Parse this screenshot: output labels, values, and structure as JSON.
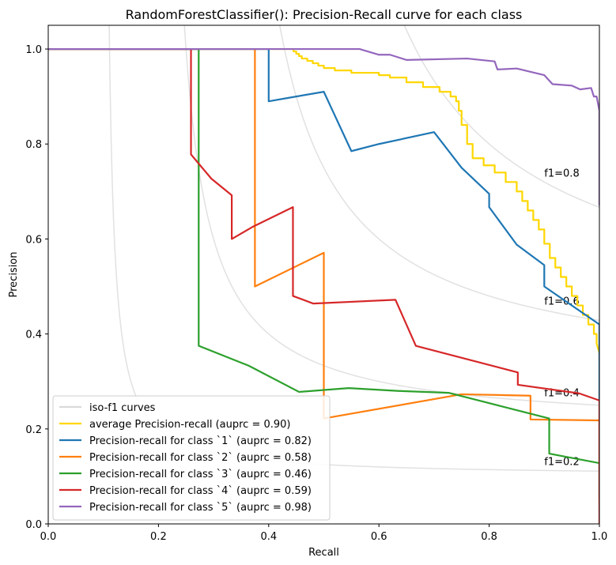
{
  "chart_data": {
    "type": "line",
    "title": "RandomForestClassifier(): Precision-Recall curve for each class",
    "xlabel": "Recall",
    "ylabel": "Precision",
    "xlim": [
      0.0,
      1.0
    ],
    "ylim": [
      0.0,
      1.05
    ],
    "xticks": [
      0.0,
      0.2,
      0.4,
      0.6,
      0.8,
      1.0
    ],
    "yticks": [
      0.0,
      0.2,
      0.4,
      0.6,
      0.8,
      1.0
    ],
    "xtick_labels": [
      "0.0",
      "0.2",
      "0.4",
      "0.6",
      "0.8",
      "1.0"
    ],
    "ytick_labels": [
      "0.0",
      "0.2",
      "0.4",
      "0.6",
      "0.8",
      "1.0"
    ],
    "legend_position": "lower-left",
    "iso_f1": {
      "label": "iso-f1 curves",
      "color": "#d9d9d9",
      "values": [
        0.2,
        0.4,
        0.6,
        0.8
      ],
      "labels": [
        "f1=0.2",
        "f1=0.4",
        "f1=0.6",
        "f1=0.8"
      ]
    },
    "series": [
      {
        "name": "average Precision-recall (auprc = 0.90)",
        "color": "#ffd700",
        "x": [
          0,
          0.44,
          0.445,
          0.445,
          0.45,
          0.45,
          0.455,
          0.455,
          0.46,
          0.46,
          0.47,
          0.47,
          0.48,
          0.48,
          0.49,
          0.49,
          0.5,
          0.5,
          0.52,
          0.52,
          0.55,
          0.55,
          0.6,
          0.6,
          0.62,
          0.62,
          0.65,
          0.65,
          0.68,
          0.68,
          0.71,
          0.71,
          0.73,
          0.73,
          0.74,
          0.74,
          0.745,
          0.745,
          0.75,
          0.75,
          0.76,
          0.76,
          0.77,
          0.77,
          0.79,
          0.79,
          0.81,
          0.81,
          0.83,
          0.83,
          0.85,
          0.85,
          0.86,
          0.86,
          0.87,
          0.87,
          0.88,
          0.88,
          0.89,
          0.89,
          0.9,
          0.9,
          0.91,
          0.91,
          0.92,
          0.92,
          0.93,
          0.93,
          0.94,
          0.94,
          0.95,
          0.95,
          0.96,
          0.96,
          0.97,
          0.97,
          0.98,
          0.98,
          0.99,
          0.99,
          0.995,
          0.995,
          1.0
        ],
        "y": [
          1.0,
          1.0,
          1.0,
          0.995,
          0.995,
          0.99,
          0.99,
          0.985,
          0.985,
          0.98,
          0.98,
          0.975,
          0.975,
          0.97,
          0.97,
          0.965,
          0.965,
          0.96,
          0.96,
          0.955,
          0.955,
          0.95,
          0.95,
          0.945,
          0.945,
          0.94,
          0.94,
          0.93,
          0.93,
          0.92,
          0.92,
          0.91,
          0.91,
          0.9,
          0.9,
          0.89,
          0.89,
          0.87,
          0.87,
          0.84,
          0.84,
          0.8,
          0.8,
          0.77,
          0.77,
          0.755,
          0.755,
          0.74,
          0.74,
          0.72,
          0.72,
          0.7,
          0.7,
          0.68,
          0.68,
          0.66,
          0.66,
          0.64,
          0.64,
          0.62,
          0.62,
          0.59,
          0.59,
          0.56,
          0.56,
          0.54,
          0.54,
          0.52,
          0.52,
          0.5,
          0.5,
          0.48,
          0.48,
          0.46,
          0.46,
          0.44,
          0.44,
          0.42,
          0.42,
          0.4,
          0.4,
          0.38,
          0.36
        ]
      },
      {
        "name": "Precision-recall for class `1` (auprc = 0.82)",
        "color": "#1f77b4",
        "x": [
          0,
          0.4,
          0.4,
          0.45,
          0.5,
          0.55,
          0.6,
          0.7,
          0.75,
          0.8,
          0.8,
          0.85,
          0.9,
          0.9,
          1.0,
          1.0
        ],
        "y": [
          1.0,
          1.0,
          0.89,
          0.9,
          0.91,
          0.785,
          0.8,
          0.825,
          0.75,
          0.695,
          0.667,
          0.588,
          0.545,
          0.5,
          0.42,
          0.26
        ]
      },
      {
        "name": "Precision-recall for class `2` (auprc = 0.58)",
        "color": "#ff7f0e",
        "x": [
          0,
          0.375,
          0.375,
          0.5,
          0.5,
          0.75,
          0.875,
          0.875,
          1.0,
          1.0
        ],
        "y": [
          1.0,
          1.0,
          0.5,
          0.571,
          0.222,
          0.273,
          0.27,
          0.22,
          0.218,
          0.04
        ]
      },
      {
        "name": "Precision-recall for class `3` (auprc = 0.46)",
        "color": "#2ca02c",
        "x": [
          0,
          0.273,
          0.273,
          0.364,
          0.455,
          0.545,
          0.636,
          0.727,
          0.909,
          0.909,
          1.0,
          1.0
        ],
        "y": [
          1.0,
          1.0,
          0.375,
          0.333,
          0.278,
          0.286,
          0.28,
          0.276,
          0.222,
          0.148,
          0.128,
          0.055
        ]
      },
      {
        "name": "Precision-recall for class `4` (auprc = 0.59)",
        "color": "#d62728",
        "x": [
          0,
          0.259,
          0.259,
          0.296,
          0.333,
          0.333,
          0.37,
          0.444,
          0.444,
          0.481,
          0.63,
          0.667,
          0.852,
          0.852,
          0.963,
          1.0,
          1.0
        ],
        "y": [
          1.0,
          1.0,
          0.778,
          0.727,
          0.692,
          0.6,
          0.625,
          0.667,
          0.48,
          0.464,
          0.472,
          0.375,
          0.319,
          0.293,
          0.275,
          0.26,
          0.0
        ]
      },
      {
        "name": "Precision-recall for class `5` (auprc = 0.98)",
        "color": "#9467bd",
        "x": [
          0,
          0.565,
          0.6,
          0.62,
          0.65,
          0.76,
          0.81,
          0.815,
          0.85,
          0.9,
          0.915,
          0.95,
          0.965,
          0.985,
          0.99,
          0.995,
          1.0,
          1.0
        ],
        "y": [
          1.0,
          1.0,
          0.988,
          0.988,
          0.977,
          0.98,
          0.974,
          0.957,
          0.959,
          0.945,
          0.926,
          0.923,
          0.915,
          0.918,
          0.9,
          0.9,
          0.87,
          0.67
        ]
      }
    ]
  }
}
